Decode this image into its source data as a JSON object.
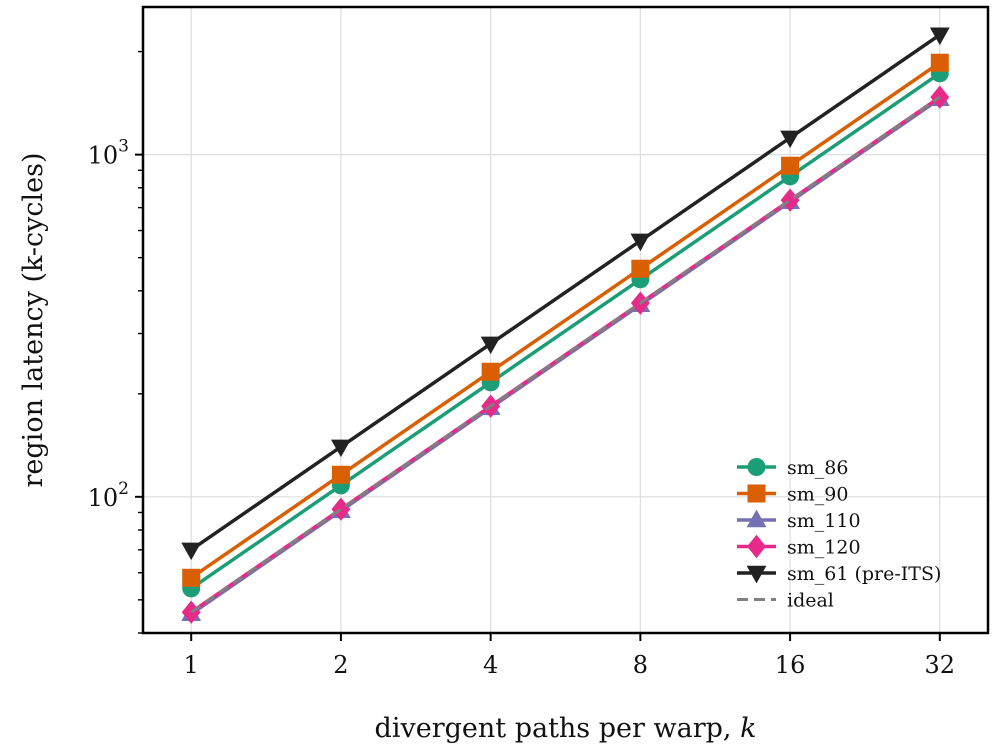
{
  "chart_data": {
    "type": "line",
    "title": "",
    "xlabel": "divergent paths per warp, ",
    "xlabel_var": "k",
    "ylabel": "region latency (k-cycles)",
    "yscale": "log",
    "xscale": "log2",
    "x": [
      1,
      2,
      4,
      8,
      16,
      32
    ],
    "xticks": [
      "1",
      "2",
      "4",
      "8",
      "16",
      "32"
    ],
    "xlim": [
      0.8,
      40
    ],
    "ylim": [
      40,
      2700
    ],
    "yticks": [
      {
        "value": 100,
        "base": "10",
        "exp": "2"
      },
      {
        "value": 1000,
        "base": "10",
        "exp": "3"
      }
    ],
    "grid": true,
    "legend_position": "lower-right",
    "series": [
      {
        "name": "sm_86",
        "color": "#1b9e77",
        "marker": "circle",
        "values": [
          54,
          108,
          216,
          432,
          864,
          1728
        ]
      },
      {
        "name": "sm_90",
        "color": "#d95f02",
        "marker": "square",
        "values": [
          58,
          116,
          232,
          464,
          928,
          1856
        ]
      },
      {
        "name": "sm_110",
        "color": "#7570b3",
        "marker": "triangle-up",
        "values": [
          45.5,
          91,
          182,
          364,
          728,
          1456
        ]
      },
      {
        "name": "sm_120",
        "color": "#e7298a",
        "marker": "diamond",
        "values": [
          46,
          92,
          184,
          368,
          736,
          1472
        ]
      },
      {
        "name": "sm_61 (pre-ITS)",
        "color": "#222222",
        "marker": "triangle-down",
        "values": [
          70,
          140,
          280,
          560,
          1120,
          2240
        ]
      },
      {
        "name": "ideal",
        "color": "#808080",
        "marker": "none",
        "dashed": true,
        "values": [
          46,
          92,
          184,
          368,
          736,
          1472
        ]
      }
    ]
  }
}
